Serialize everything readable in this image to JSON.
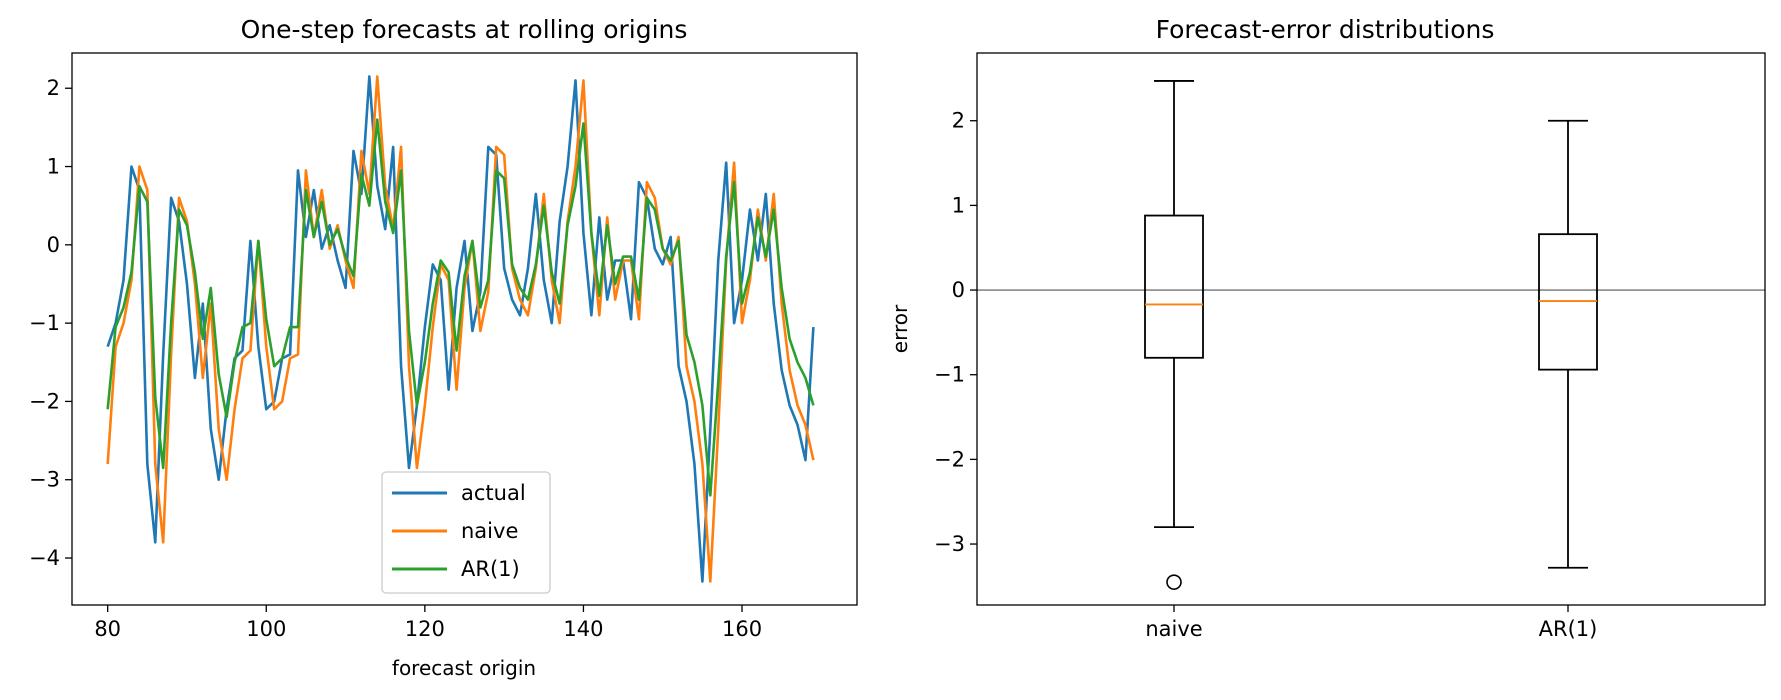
{
  "chart_data": [
    {
      "type": "line",
      "title": "One-step forecasts at rolling origins",
      "xlabel": "forecast origin",
      "ylabel": "",
      "xlim": [
        75.5,
        174.5
      ],
      "ylim": [
        -4.6,
        2.45
      ],
      "xticks": [
        80,
        100,
        120,
        140,
        160
      ],
      "xtick_labels": [
        "80",
        "100",
        "120",
        "140",
        "160"
      ],
      "yticks": [
        -4,
        -3,
        -2,
        -1,
        0,
        1,
        2
      ],
      "ytick_labels": [
        "−4",
        "−3",
        "−2",
        "−1",
        "0",
        "1",
        "2"
      ],
      "legend_position": "lower-center",
      "x": [
        80,
        81,
        82,
        83,
        84,
        85,
        86,
        87,
        88,
        89,
        90,
        91,
        92,
        93,
        94,
        95,
        96,
        97,
        98,
        99,
        100,
        101,
        102,
        103,
        104,
        105,
        106,
        107,
        108,
        109,
        110,
        111,
        112,
        113,
        114,
        115,
        116,
        117,
        118,
        119,
        120,
        121,
        122,
        123,
        124,
        125,
        126,
        127,
        128,
        129,
        130,
        131,
        132,
        133,
        134,
        135,
        136,
        137,
        138,
        139,
        140,
        141,
        142,
        143,
        144,
        145,
        146,
        147,
        148,
        149,
        150,
        151,
        152,
        153,
        154,
        155,
        156,
        157,
        158,
        159,
        160,
        161,
        162,
        163,
        164,
        165,
        166,
        167,
        168,
        169
      ],
      "series": [
        {
          "name": "actual",
          "color": "#1f77b4",
          "values": [
            -1.3,
            -1.0,
            -0.45,
            1.0,
            0.7,
            -2.8,
            -3.8,
            -1.4,
            0.6,
            0.3,
            -0.5,
            -1.7,
            -0.75,
            -2.35,
            -3.0,
            -2.1,
            -1.45,
            -1.35,
            0.05,
            -1.3,
            -2.1,
            -2.0,
            -1.45,
            -1.4,
            0.95,
            0.1,
            0.7,
            -0.05,
            0.25,
            -0.2,
            -0.55,
            1.2,
            0.65,
            2.15,
            0.75,
            0.2,
            1.25,
            -1.55,
            -2.85,
            -2.05,
            -1.05,
            -0.25,
            -0.45,
            -1.85,
            -0.55,
            0.05,
            -1.1,
            -0.6,
            1.25,
            1.15,
            -0.3,
            -0.7,
            -0.9,
            -0.3,
            0.65,
            -0.45,
            -1.0,
            0.3,
            1.0,
            2.1,
            0.15,
            -0.9,
            0.35,
            -0.7,
            -0.2,
            -0.2,
            -0.95,
            0.8,
            0.6,
            -0.05,
            -0.25,
            0.1,
            -1.55,
            -2.0,
            -2.8,
            -4.3,
            -2.35,
            -0.2,
            1.05,
            -1.0,
            -0.45,
            0.45,
            -0.2,
            0.65,
            -0.75,
            -1.6,
            -2.05,
            -2.3,
            -2.75,
            -1.05
          ]
        },
        {
          "name": "naive",
          "color": "#ff7f0e",
          "values": [
            -2.8,
            -1.3,
            -1.0,
            -0.45,
            1.0,
            0.7,
            -2.8,
            -3.8,
            -1.4,
            0.6,
            0.3,
            -0.5,
            -1.7,
            -0.75,
            -2.35,
            -3.0,
            -2.1,
            -1.45,
            -1.35,
            0.05,
            -1.3,
            -2.1,
            -2.0,
            -1.45,
            -1.4,
            0.95,
            0.1,
            0.7,
            -0.05,
            0.25,
            -0.2,
            -0.55,
            1.2,
            0.65,
            2.15,
            0.75,
            0.2,
            1.25,
            -1.55,
            -2.85,
            -2.05,
            -1.05,
            -0.25,
            -0.45,
            -1.85,
            -0.55,
            0.05,
            -1.1,
            -0.6,
            1.25,
            1.15,
            -0.3,
            -0.7,
            -0.9,
            -0.3,
            0.65,
            -0.45,
            -1.0,
            0.3,
            1.0,
            2.1,
            0.15,
            -0.9,
            0.35,
            -0.7,
            -0.2,
            -0.2,
            -0.95,
            0.8,
            0.6,
            -0.05,
            -0.25,
            0.1,
            -1.55,
            -2.0,
            -2.8,
            -4.3,
            -2.35,
            -0.2,
            1.05,
            -1.0,
            -0.45,
            0.45,
            -0.2,
            0.65,
            -0.75,
            -1.6,
            -2.05,
            -2.3,
            -2.75
          ]
        },
        {
          "name": "AR(1)",
          "color": "#2ca02c",
          "values": [
            -2.1,
            -1.05,
            -0.8,
            -0.35,
            0.75,
            0.55,
            -1.95,
            -2.85,
            -1.0,
            0.45,
            0.25,
            -0.35,
            -1.2,
            -0.55,
            -1.65,
            -2.2,
            -1.5,
            -1.05,
            -1.0,
            0.05,
            -0.95,
            -1.55,
            -1.45,
            -1.05,
            -1.05,
            0.7,
            0.1,
            0.55,
            0.0,
            0.2,
            -0.15,
            -0.4,
            0.9,
            0.5,
            1.6,
            0.55,
            0.15,
            0.95,
            -1.1,
            -2.05,
            -1.5,
            -0.75,
            -0.2,
            -0.35,
            -1.35,
            -0.4,
            0.05,
            -0.8,
            -0.45,
            0.95,
            0.85,
            -0.25,
            -0.55,
            -0.7,
            -0.25,
            0.5,
            -0.35,
            -0.75,
            0.25,
            0.75,
            1.55,
            0.15,
            -0.65,
            0.25,
            -0.5,
            -0.15,
            -0.15,
            -0.7,
            0.6,
            0.45,
            -0.05,
            -0.2,
            0.05,
            -1.15,
            -1.5,
            -2.05,
            -3.2,
            -1.75,
            -0.15,
            0.8,
            -0.75,
            -0.35,
            0.35,
            -0.15,
            0.45,
            -0.55,
            -1.2,
            -1.5,
            -1.7,
            -2.05
          ]
        }
      ]
    },
    {
      "type": "box",
      "title": "Forecast-error distributions",
      "xlabel": "",
      "ylabel": "error",
      "xlim": [
        0.5,
        2.5
      ],
      "ylim": [
        -3.72,
        2.8
      ],
      "yticks": [
        -3,
        -2,
        -1,
        0,
        1,
        2
      ],
      "ytick_labels": [
        "−3",
        "−2",
        "−1",
        "0",
        "1",
        "2"
      ],
      "reference_line": 0,
      "reference_line_color": "#555555",
      "box_color": "#000000",
      "median_color": "#ff7f0e",
      "boxes": [
        {
          "label": "naive",
          "position": 1,
          "whisker_low": -2.8,
          "q1": -0.8,
          "median": -0.17,
          "q3": 0.88,
          "whisker_high": 2.47,
          "outliers": [
            -3.45
          ]
        },
        {
          "label": "AR(1)",
          "position": 2,
          "whisker_low": -3.28,
          "q1": -0.94,
          "median": -0.13,
          "q3": 0.66,
          "whisker_high": 2.0,
          "outliers": []
        }
      ]
    }
  ]
}
